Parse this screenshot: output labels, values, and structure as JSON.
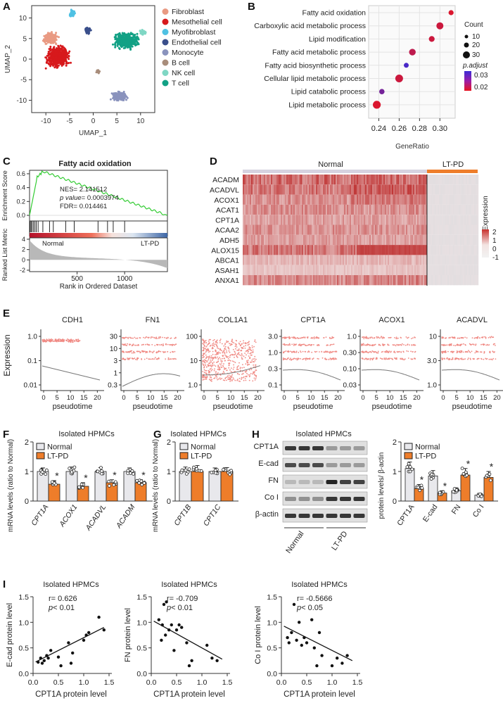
{
  "panels": {
    "A": {
      "label": "A",
      "xlabel": "UMAP_1",
      "ylabel": "UMAP_2",
      "xticks": [
        "-10",
        "-5",
        "0",
        "5",
        "10"
      ],
      "yticks": [
        "10",
        "5",
        "0",
        "-5",
        "-10"
      ],
      "legend": [
        {
          "name": "Fibroblast",
          "color": "#e99a83"
        },
        {
          "name": "Mesothelial cell",
          "color": "#d7191c"
        },
        {
          "name": "Myofibroblast",
          "color": "#4fc1e3"
        },
        {
          "name": "Endothelial cell",
          "color": "#3a4f8b"
        },
        {
          "name": "Monocyte",
          "color": "#8a93bd"
        },
        {
          "name": "B cell",
          "color": "#a88d7b"
        },
        {
          "name": "NK cell",
          "color": "#7fd7c4"
        },
        {
          "name": "T cell",
          "color": "#12a185"
        }
      ]
    },
    "B": {
      "label": "B",
      "xlabel": "GeneRatio",
      "terms": [
        "Fatty acid oxidation",
        "Carboxylic acid metabolic process",
        "Lipid modification",
        "Fatty acid metabolic process",
        "Fatty acid biosynthetic process",
        "Cellular lipid metabolic process",
        "Lipid catabolic process",
        "Lipid metabolic process"
      ],
      "xticks": [
        "0.24",
        "0.26",
        "0.28",
        "0.30"
      ],
      "legend_count_title": "Count",
      "legend_counts": [
        "10",
        "20",
        "30"
      ],
      "legend_p_title": "p.adjust",
      "legend_p": [
        "0.03",
        "0.02"
      ]
    },
    "C": {
      "label": "C",
      "title": "Fatty acid oxidation",
      "nes": "NES= 2.141512",
      "pval_label": "p value",
      "pval": "= 0.0003974",
      "fdr": "FDR= 0.014461",
      "ylabel_top": "Enrichment Score",
      "ylabel_bottom": "Ranked List Metric",
      "xlabel": "Rank in Ordered Dataset",
      "normal": "Normal",
      "ltpd": "LT-PD",
      "es_ticks": [
        "0.6",
        "0.4",
        "0.2",
        "0.0"
      ],
      "rank_ticks": [
        "4",
        "2",
        "0",
        "-2"
      ],
      "x_ticks": [
        "500",
        "1000"
      ]
    },
    "D": {
      "label": "D",
      "groups": [
        "Normal",
        "LT-PD"
      ],
      "genes": [
        "ACADM",
        "ACADVL",
        "ACOX1",
        "ACAT1",
        "CPT1A",
        "ACAA2",
        "ADH5",
        "ALOX15",
        "ABCA1",
        "ASAH1",
        "ANXA1"
      ],
      "legend_title": "Expression",
      "legend_ticks": [
        "2",
        "1",
        "0",
        "-1"
      ]
    },
    "E": {
      "label": "E",
      "ylabel": "Expression",
      "xlabel": "pseudotime",
      "xticks": [
        "0",
        "5",
        "10",
        "15",
        "20"
      ],
      "plots": [
        {
          "gene": "CDH1",
          "yticks": [
            "1.0",
            "0.1",
            "0.01"
          ]
        },
        {
          "gene": "FN1",
          "yticks": [
            "30",
            "10",
            "3",
            "1",
            "0.3"
          ]
        },
        {
          "gene": "COL1A1",
          "yticks": [
            "100",
            "10",
            "1.0"
          ]
        },
        {
          "gene": "CPT1A",
          "yticks": [
            "3.0",
            "1.0",
            "0.3",
            "0.1"
          ]
        },
        {
          "gene": "ACOX1",
          "yticks": [
            "1.0",
            "0.30",
            "0.10",
            "0.03"
          ]
        },
        {
          "gene": "ACADVL",
          "yticks": [
            "10",
            "3.0",
            "1.0"
          ]
        }
      ]
    },
    "F": {
      "label": "F",
      "title": "Isolated HPMCs",
      "ylabel": "mRNA levels (ratio to Normal)",
      "legend": [
        "Normal",
        "LT-PD"
      ],
      "yticks": [
        "2",
        "1",
        "0"
      ],
      "star": "*"
    },
    "G": {
      "label": "G",
      "title": "Isolated HPMCs",
      "ylabel": "mRNA levels (ratio to Normal)",
      "legend": [
        "Normal",
        "LT-PD"
      ],
      "yticks": [
        "2",
        "1",
        "0"
      ]
    },
    "H": {
      "label": "H",
      "title": "Isolated HPMCs",
      "blot_rows": [
        "CPT1A",
        "E-cad",
        "FN",
        "Co I",
        "β-actin"
      ],
      "lane_groups": [
        "Normal",
        "LT-PD"
      ],
      "ylabel": "protein levels/ β-actin",
      "legend": [
        "Normal",
        "LT-PD"
      ],
      "yticks": [
        "2",
        "1",
        "0"
      ],
      "star": "*"
    },
    "I": {
      "label": "I",
      "xlabel": "CPT1A  protein level",
      "xticks": [
        "0.0",
        "0.5",
        "1.0",
        "1.5"
      ],
      "plots": [
        {
          "title": "Isolated HPMCs",
          "ylabel": "E-cad protein level",
          "r": "r= 0.626",
          "p_label": "p",
          "p": "< 0.01",
          "yticks": [
            "1.5",
            "1.0",
            "0.5",
            "0.0"
          ]
        },
        {
          "title": "Isolated HPMCs",
          "ylabel": "FN protein level",
          "r": "r= -0.709",
          "p_label": "p",
          "p": "< 0.01",
          "yticks": [
            "1.5",
            "1.0",
            "0.5",
            "0.0"
          ]
        },
        {
          "title": "Isolated HPMCs",
          "ylabel": "Co I protein level",
          "r": "r= -0.5666",
          "p_label": "p",
          "p": "< 0.05",
          "yticks": [
            "1.5",
            "1.0",
            "0.5",
            "0.0"
          ]
        }
      ]
    }
  },
  "colors": {
    "normal": "#e8e8ec",
    "ltpd": "#ee7d2a",
    "dot": "#e6222a",
    "gsea_line": "#33cc33"
  },
  "chart_data": [
    {
      "type": "scatter",
      "panel": "B",
      "title": "",
      "xlabel": "GeneRatio",
      "ylabel": "",
      "xlim": [
        0.23,
        0.315
      ],
      "categories": [
        "Fatty acid oxidation",
        "Carboxylic acid metabolic process",
        "Lipid modification",
        "Fatty acid metabolic process",
        "Fatty acid biosynthetic process",
        "Cellular lipid metabolic process",
        "Lipid catabolic process",
        "Lipid metabolic process"
      ],
      "x": [
        0.311,
        0.3,
        0.292,
        0.273,
        0.267,
        0.26,
        0.243,
        0.238
      ],
      "count": [
        8,
        22,
        12,
        18,
        7,
        28,
        9,
        30
      ],
      "p_adjust": [
        0.021,
        0.022,
        0.022,
        0.023,
        0.031,
        0.022,
        0.028,
        0.021
      ]
    },
    {
      "type": "bar",
      "panel": "F",
      "title": "Isolated HPMCs",
      "categories": [
        "CPT1A",
        "ACOX1",
        "ACADVL",
        "ACADM"
      ],
      "series": [
        {
          "name": "Normal",
          "values": [
            1.0,
            1.0,
            1.0,
            1.0
          ],
          "err": [
            0.12,
            0.15,
            0.13,
            0.12
          ]
        },
        {
          "name": "LT-PD",
          "values": [
            0.57,
            0.5,
            0.62,
            0.62
          ],
          "err": [
            0.12,
            0.12,
            0.1,
            0.1
          ]
        }
      ],
      "significant": [
        true,
        true,
        true,
        true
      ],
      "ylabel": "mRNA levels (ratio to Normal)",
      "ylim": [
        0,
        2
      ]
    },
    {
      "type": "bar",
      "panel": "G",
      "title": "Isolated HPMCs",
      "categories": [
        "CPT1B",
        "CPT1C"
      ],
      "series": [
        {
          "name": "Normal",
          "values": [
            1.0,
            1.0
          ],
          "err": [
            0.15,
            0.12
          ]
        },
        {
          "name": "LT-PD",
          "values": [
            1.0,
            1.0
          ],
          "err": [
            0.2,
            0.13
          ]
        }
      ],
      "significant": [
        false,
        false
      ],
      "ylabel": "mRNA levels (ratio to Normal)",
      "ylim": [
        0,
        2
      ]
    },
    {
      "type": "bar",
      "panel": "H",
      "title": "Isolated HPMCs",
      "categories": [
        "CPT1A",
        "E-cad",
        "FN",
        "Co I"
      ],
      "series": [
        {
          "name": "Normal",
          "values": [
            1.1,
            0.85,
            0.35,
            0.2
          ],
          "err": [
            0.22,
            0.18,
            0.1,
            0.06
          ]
        },
        {
          "name": "LT-PD",
          "values": [
            0.42,
            0.27,
            0.88,
            0.8
          ],
          "err": [
            0.14,
            0.08,
            0.22,
            0.2
          ]
        }
      ],
      "significant": [
        true,
        true,
        true,
        true
      ],
      "ylabel": "protein levels/ β-actin",
      "ylim": [
        0,
        2
      ]
    },
    {
      "type": "scatter",
      "panel": "I-1",
      "title": "Isolated HPMCs",
      "xlabel": "CPT1A  protein level",
      "ylabel": "E-cad protein level",
      "xlim": [
        0,
        1.5
      ],
      "ylim": [
        0,
        1.5
      ],
      "x": [
        0.1,
        0.15,
        0.18,
        0.22,
        0.27,
        0.3,
        0.35,
        0.5,
        0.55,
        0.7,
        0.75,
        0.78,
        1.0,
        1.05,
        1.1,
        1.3,
        1.4
      ],
      "y": [
        0.22,
        0.3,
        0.2,
        0.25,
        0.35,
        0.3,
        0.45,
        0.32,
        0.15,
        0.6,
        0.2,
        0.4,
        0.65,
        0.75,
        0.8,
        1.1,
        0.85
      ],
      "fit": {
        "slope": 0.5,
        "intercept": 0.2
      }
    },
    {
      "type": "scatter",
      "panel": "I-2",
      "title": "Isolated HPMCs",
      "xlabel": "CPT1A  protein level",
      "ylabel": "FN protein level",
      "xlim": [
        0,
        1.5
      ],
      "ylim": [
        0,
        1.5
      ],
      "x": [
        0.15,
        0.2,
        0.22,
        0.25,
        0.28,
        0.3,
        0.35,
        0.4,
        0.45,
        0.5,
        0.55,
        0.6,
        0.7,
        0.75,
        0.8,
        1.1,
        1.2,
        1.3
      ],
      "y": [
        1.05,
        0.65,
        0.95,
        1.35,
        0.75,
        1.4,
        0.85,
        0.95,
        0.45,
        0.85,
        0.95,
        0.9,
        0.6,
        0.15,
        0.25,
        0.55,
        0.3,
        0.25
      ],
      "fit": {
        "slope": -0.55,
        "intercept": 1.05
      }
    },
    {
      "type": "scatter",
      "panel": "I-3",
      "title": "Isolated HPMCs",
      "xlabel": "CPT1A  protein level",
      "ylabel": "Co I protein level",
      "xlim": [
        0,
        1.5
      ],
      "ylim": [
        0,
        1.5
      ],
      "x": [
        0.12,
        0.15,
        0.2,
        0.25,
        0.3,
        0.35,
        0.4,
        0.45,
        0.5,
        0.6,
        0.65,
        0.7,
        0.75,
        0.8,
        1.0,
        1.1,
        1.2,
        1.3
      ],
      "y": [
        0.7,
        0.6,
        0.8,
        1.35,
        0.65,
        1.0,
        0.55,
        0.7,
        0.6,
        1.05,
        0.5,
        0.15,
        0.8,
        0.35,
        0.15,
        0.3,
        0.2,
        0.35
      ],
      "fit": {
        "slope": -0.5,
        "intercept": 0.95
      }
    }
  ]
}
